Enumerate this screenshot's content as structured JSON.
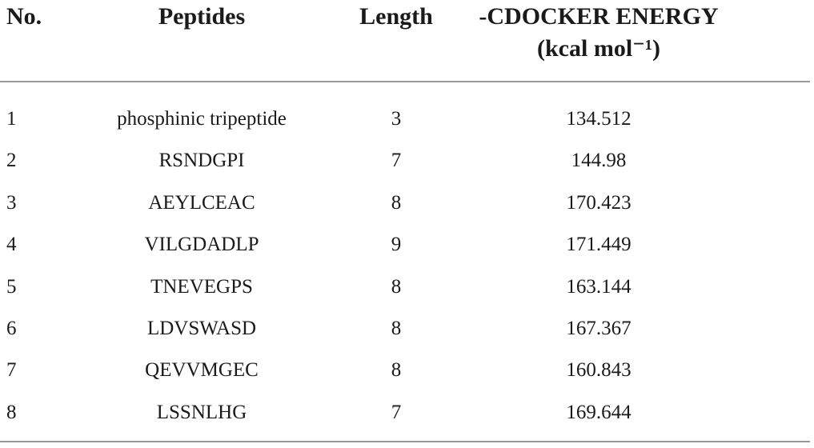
{
  "table": {
    "header": [
      "No.",
      "Peptides",
      "Length",
      "-CDOCKER ENERGY"
    ],
    "header_unit": "(kcal mol⁻¹)",
    "rows": [
      [
        1,
        "phosphinic tripeptide",
        3,
        134.512
      ],
      [
        2,
        "RSNDGPI",
        7,
        144.98
      ],
      [
        3,
        "AEYLCEAC",
        8,
        170.423
      ],
      [
        4,
        "VILGDADLP",
        9,
        171.449
      ],
      [
        5,
        "TNEVEGPS",
        8,
        163.144
      ],
      [
        6,
        "LDVSWASD",
        8,
        167.367
      ],
      [
        7,
        "QEVVMGEC",
        8,
        160.843
      ],
      [
        8,
        "LSSNLHG",
        7,
        169.644
      ]
    ]
  }
}
